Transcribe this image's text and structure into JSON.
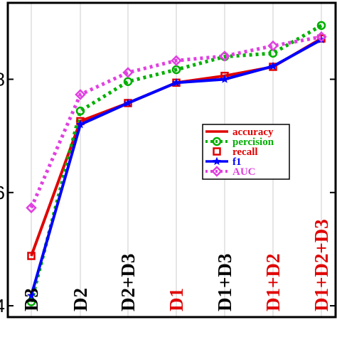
{
  "chart_data": {
    "type": "line",
    "title": "",
    "xlabel": "",
    "ylabel": "",
    "categories": [
      "D3",
      "D2",
      "D2+D3",
      "D1",
      "D1+D3",
      "D1+D2",
      "D1+D2+D3"
    ],
    "category_colors": [
      "#000000",
      "#000000",
      "#000000",
      "#e00000",
      "#000000",
      "#e00000",
      "#e00000"
    ],
    "yticks": [
      0.4,
      0.6,
      0.8
    ],
    "ytick_labels": [
      "4",
      "6",
      "8"
    ],
    "ylim": [
      0.38,
      0.935
    ],
    "grid": "vertical",
    "legend_position": "center-right",
    "series": [
      {
        "name": "accuracy",
        "color": "#e00000",
        "style": "solid",
        "marker": "none",
        "values": [
          0.488,
          0.726,
          0.758,
          0.794,
          0.806,
          0.822,
          0.872
        ]
      },
      {
        "name": "percision",
        "color": "#00b000",
        "style": "dotted",
        "marker": "circle",
        "values": [
          0.407,
          0.744,
          0.796,
          0.817,
          0.84,
          0.846,
          0.895
        ]
      },
      {
        "name": "recall",
        "color": "#e00000",
        "style": "none",
        "marker": "square",
        "values": [
          0.488,
          0.726,
          0.758,
          0.794,
          0.806,
          0.822,
          0.872
        ]
      },
      {
        "name": "f1",
        "color": "#0000ff",
        "style": "solid",
        "marker": "star",
        "values": [
          0.418,
          0.72,
          0.758,
          0.794,
          0.8,
          0.823,
          0.87
        ]
      },
      {
        "name": "AUC",
        "color": "#e040e0",
        "style": "dotted",
        "marker": "diamond",
        "values": [
          0.573,
          0.773,
          0.812,
          0.833,
          0.841,
          0.859,
          0.875
        ]
      }
    ]
  }
}
